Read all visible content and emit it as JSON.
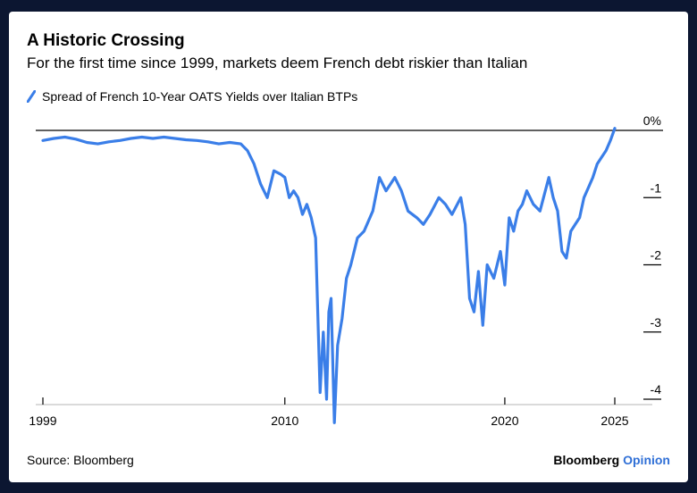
{
  "title": "A Historic Crossing",
  "subtitle": "For the first time since 1999, markets deem French debt riskier than Italian",
  "source": "Source: Bloomberg",
  "branding": {
    "part1": "Bloomberg",
    "part2": "Opinion"
  },
  "colors": {
    "line": "#3a7ee8",
    "brand_accent": "#2f6fd6",
    "frame": "#0c1631"
  },
  "chart_data": {
    "type": "line",
    "title": "A Historic Crossing",
    "xlabel": "",
    "ylabel": "",
    "xlim": [
      1999,
      2025.5
    ],
    "ylim": [
      -4.4,
      0.1
    ],
    "x_ticks": [
      {
        "value": 1999,
        "label": "1999"
      },
      {
        "value": 2010,
        "label": "2010"
      },
      {
        "value": 2020,
        "label": "2020"
      },
      {
        "value": 2025,
        "label": "2025"
      }
    ],
    "y_ticks": [
      {
        "value": 0,
        "label": "0%"
      },
      {
        "value": -1,
        "label": "-1"
      },
      {
        "value": -2,
        "label": "-2"
      },
      {
        "value": -3,
        "label": "-3"
      },
      {
        "value": -4,
        "label": "-4"
      }
    ],
    "series": [
      {
        "name": "Spread of French 10-Year OATS Yields over Italian BTPs",
        "x": [
          1999.0,
          1999.5,
          2000.0,
          2000.5,
          2001.0,
          2001.5,
          2002.0,
          2002.5,
          2003.0,
          2003.5,
          2004.0,
          2004.5,
          2005.0,
          2005.5,
          2006.0,
          2006.5,
          2007.0,
          2007.5,
          2008.0,
          2008.3,
          2008.6,
          2008.9,
          2009.2,
          2009.5,
          2009.8,
          2010.0,
          2010.2,
          2010.4,
          2010.6,
          2010.8,
          2011.0,
          2011.2,
          2011.4,
          2011.6,
          2011.75,
          2011.9,
          2012.0,
          2012.1,
          2012.25,
          2012.4,
          2012.6,
          2012.8,
          2013.0,
          2013.3,
          2013.6,
          2014.0,
          2014.3,
          2014.6,
          2015.0,
          2015.3,
          2015.6,
          2016.0,
          2016.3,
          2016.6,
          2017.0,
          2017.3,
          2017.6,
          2018.0,
          2018.2,
          2018.4,
          2018.6,
          2018.8,
          2019.0,
          2019.2,
          2019.5,
          2019.8,
          2020.0,
          2020.2,
          2020.4,
          2020.6,
          2020.8,
          2021.0,
          2021.3,
          2021.6,
          2022.0,
          2022.2,
          2022.4,
          2022.6,
          2022.8,
          2023.0,
          2023.2,
          2023.4,
          2023.6,
          2023.8,
          2024.0,
          2024.2,
          2024.4,
          2024.6,
          2024.8,
          2025.0
        ],
        "values": [
          -0.15,
          -0.12,
          -0.1,
          -0.13,
          -0.18,
          -0.2,
          -0.17,
          -0.15,
          -0.12,
          -0.1,
          -0.12,
          -0.1,
          -0.12,
          -0.14,
          -0.15,
          -0.17,
          -0.2,
          -0.18,
          -0.2,
          -0.3,
          -0.5,
          -0.8,
          -1.0,
          -0.6,
          -0.65,
          -0.7,
          -1.0,
          -0.9,
          -1.0,
          -1.25,
          -1.1,
          -1.3,
          -1.6,
          -3.9,
          -3.0,
          -4.0,
          -2.7,
          -2.5,
          -4.35,
          -3.2,
          -2.8,
          -2.2,
          -2.0,
          -1.6,
          -1.5,
          -1.2,
          -0.7,
          -0.9,
          -0.7,
          -0.9,
          -1.2,
          -1.3,
          -1.4,
          -1.25,
          -1.0,
          -1.1,
          -1.25,
          -1.0,
          -1.4,
          -2.5,
          -2.7,
          -2.1,
          -2.9,
          -2.0,
          -2.2,
          -1.8,
          -2.3,
          -1.3,
          -1.5,
          -1.2,
          -1.1,
          -0.9,
          -1.1,
          -1.2,
          -0.7,
          -1.0,
          -1.2,
          -1.8,
          -1.9,
          -1.5,
          -1.4,
          -1.3,
          -1.0,
          -0.85,
          -0.7,
          -0.5,
          -0.4,
          -0.3,
          -0.15,
          0.03
        ]
      }
    ],
    "legend": "top-left"
  }
}
